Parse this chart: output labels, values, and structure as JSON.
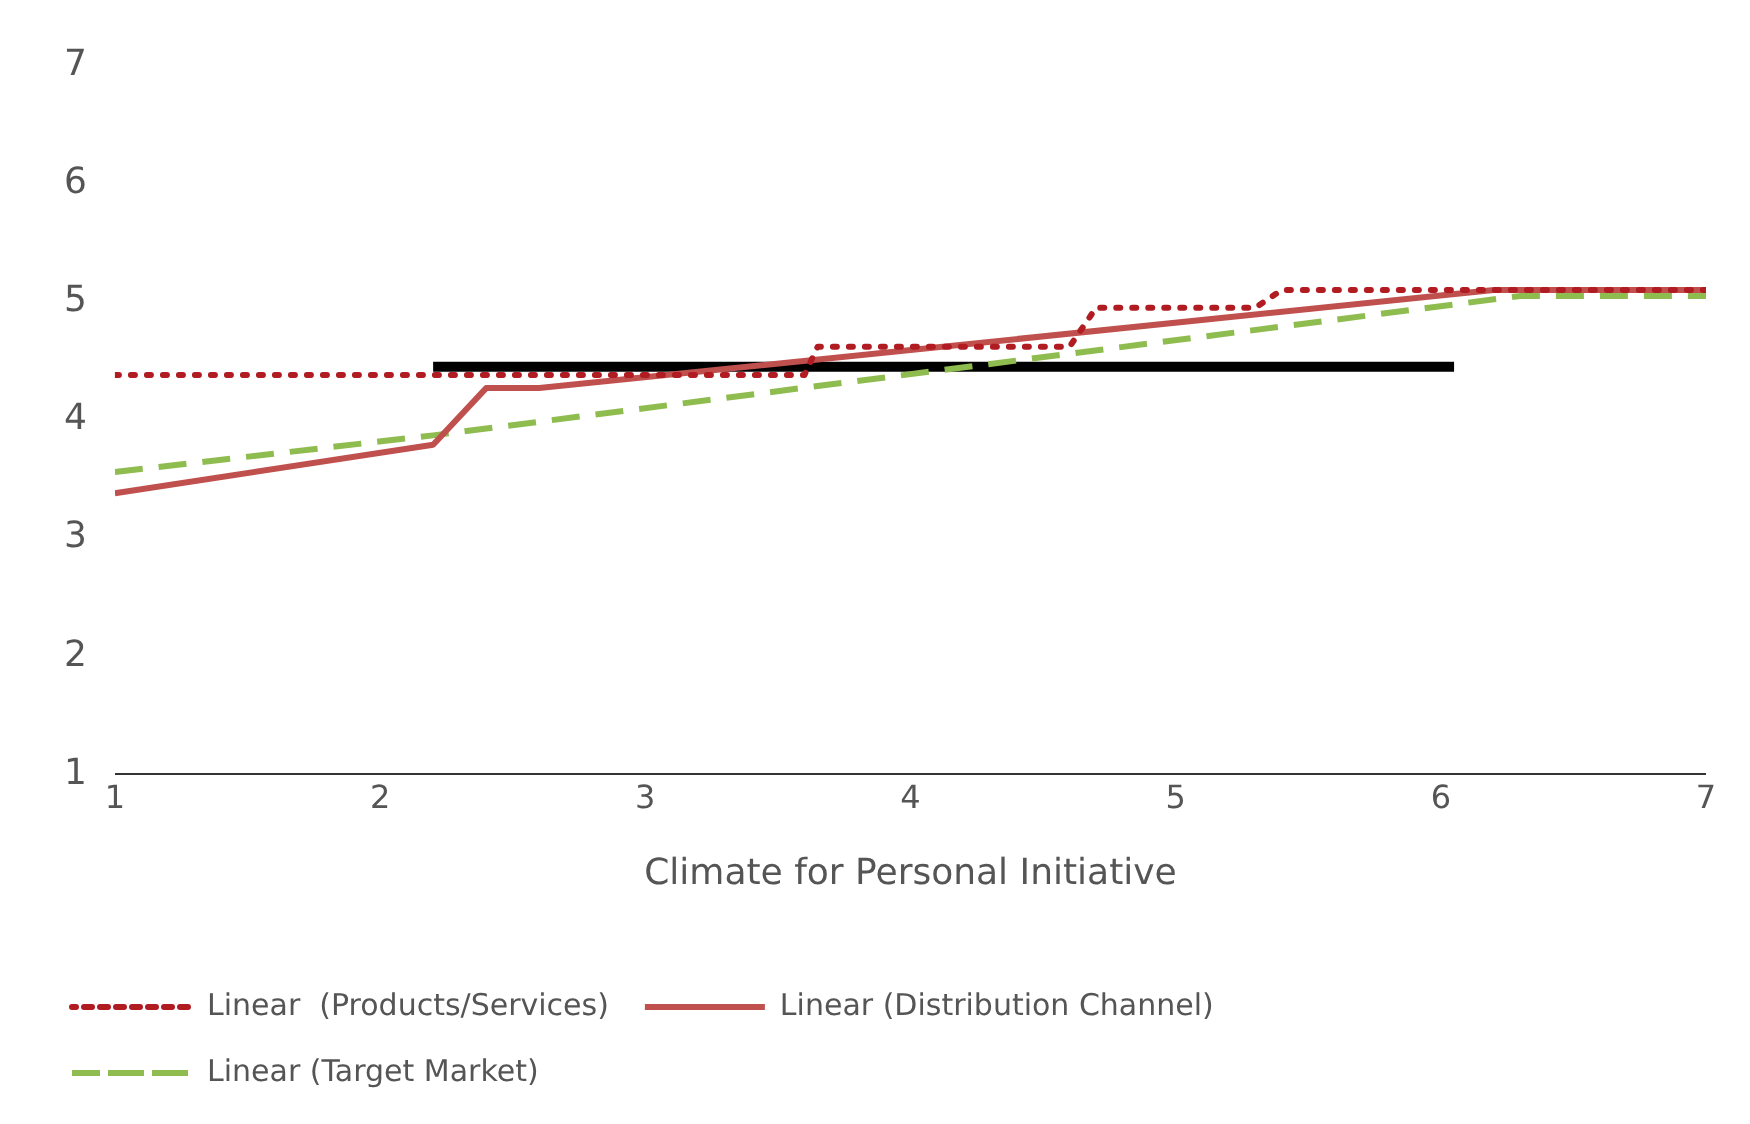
{
  "chart_data": {
    "type": "line",
    "xlabel": "Climate for Personal Initiative",
    "xlim": [
      1,
      7
    ],
    "xticks": [
      1,
      2,
      3,
      4,
      5,
      6,
      7
    ],
    "ylim": [
      1,
      7
    ],
    "yticks": [
      1,
      2,
      3,
      4,
      5,
      6,
      7
    ],
    "grid": false,
    "legend": "bottom",
    "marker": "none",
    "series": [
      {
        "name": "Linear  (Products/Services)",
        "color": "#b01c22",
        "line_style": "dotted",
        "x": [
          1,
          3.6,
          3.65,
          4.6,
          4.7,
          5.3,
          5.4,
          7
        ],
        "values": [
          4.38,
          4.38,
          4.62,
          4.62,
          4.95,
          4.95,
          5.1,
          5.1
        ]
      },
      {
        "name": "Linear (Distribution Channel)",
        "color": "#c0504d",
        "line_style": "solid",
        "x": [
          1,
          2.2,
          2.4,
          2.6,
          6.2,
          7
        ],
        "values": [
          3.38,
          3.79,
          4.27,
          4.27,
          5.1,
          5.1
        ]
      },
      {
        "name": "Linear (Target Market)",
        "color": "#8fbc4f",
        "line_style": "dashed",
        "x": [
          1,
          2.2,
          6.3,
          7
        ],
        "values": [
          3.56,
          3.87,
          5.05,
          5.05
        ]
      },
      {
        "color": "#000000",
        "line_style": "solid",
        "x": [
          2.2,
          6.05
        ],
        "values": [
          4.45,
          4.45
        ]
      }
    ]
  }
}
